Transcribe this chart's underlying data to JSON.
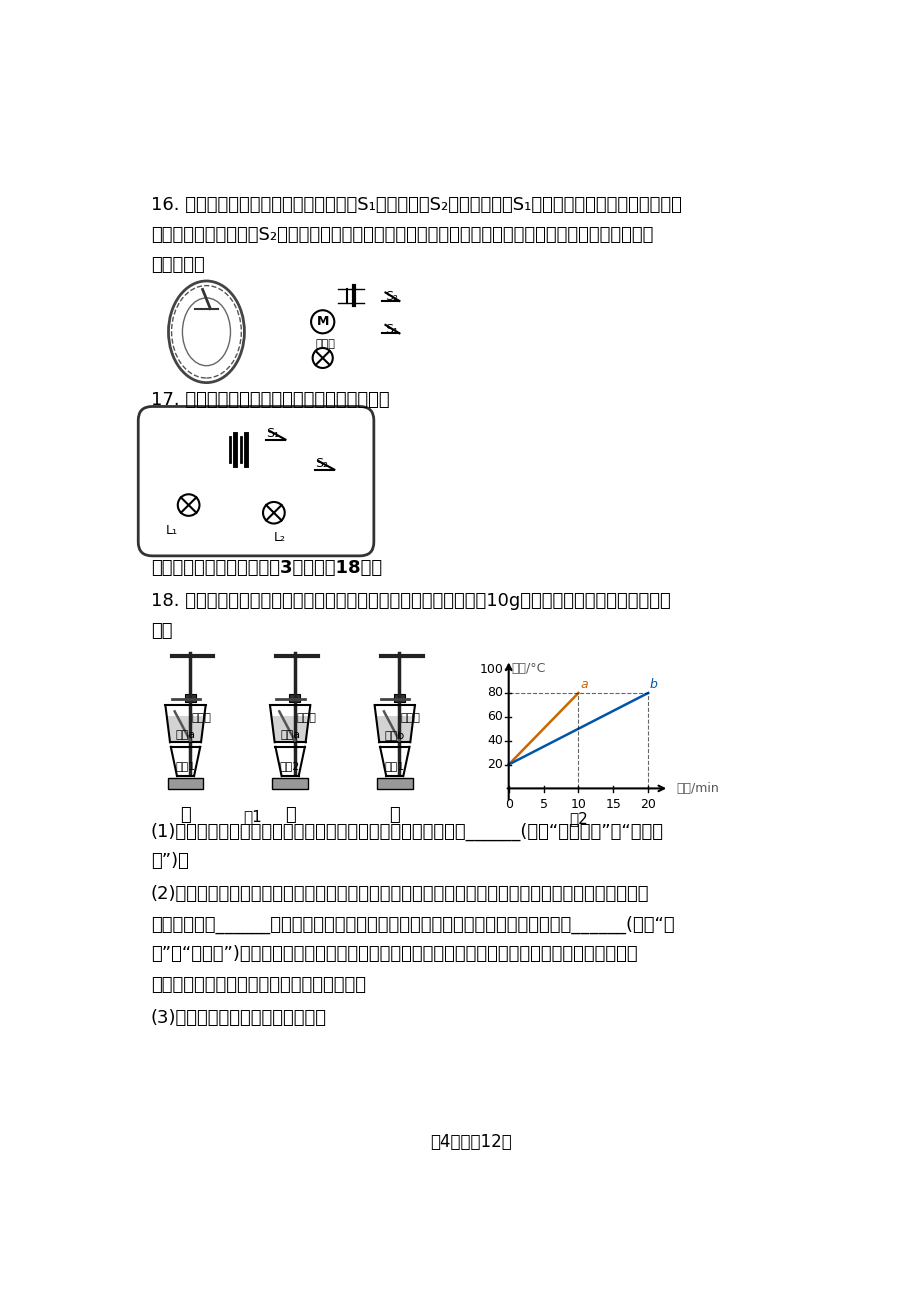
{
  "bg_color": "#ffffff",
  "text_color": "#000000",
  "font_size_body": 13,
  "font_size_small": 11,
  "page_footer": "笥4页，全12页",
  "q16_line1": "16. 单轮平衡车的电路部分安装电源开关S₁和压力开关S₂，当手动闭合S₁时，指示灯亮起，此时骑行者再",
  "q16_line2": "站立于平衡车踏板上后S₂自动闭合，电动机才能正常启动，平衡车才开始运动。请根据上述要求将电路图",
  "q16_line3": "连接完整。",
  "q17_text": "17. 在图中，根据实物图，画出相应的电路图。",
  "q4_section": "四、实验探究题：本大题关3小题，円18分。",
  "q18_line1": "18. 如图所示，甲、乙、丙三图中的装置完全相同，燃料的质量都是10g，烧杯内的液体质量和初温也相",
  "q18_line2": "同。",
  "q18_sub1a": "(1)实验时组装如图甲、乙、丙所示的装置时，正确的安装顺序是______(选填“自上而下”或“自下而",
  "q18_sub1b": "上”)；",
  "q18_sub2a": "(2)实验中，燃料完全燃烧放出的热量是通过液体吸热后温度的变化来反映的。本实验要比较不同燃料的",
  "q18_sub2b": "热値，应选择______两图进行实验；用两个相同规格的烧杯装相等质量的水，取质量______(选填“相",
  "q18_sub2c": "等”或“不相等”)的酒精和碎纸片，分别放入两个燃烧盘中，分别给烧杯加热，直到酒精和碎纸片完全",
  "q18_sub2d": "燃尽，最终来确定酒精和碎纸片热値的大小；",
  "q18_sub3": "(3)比较不同物质吸热升温的特点："
}
